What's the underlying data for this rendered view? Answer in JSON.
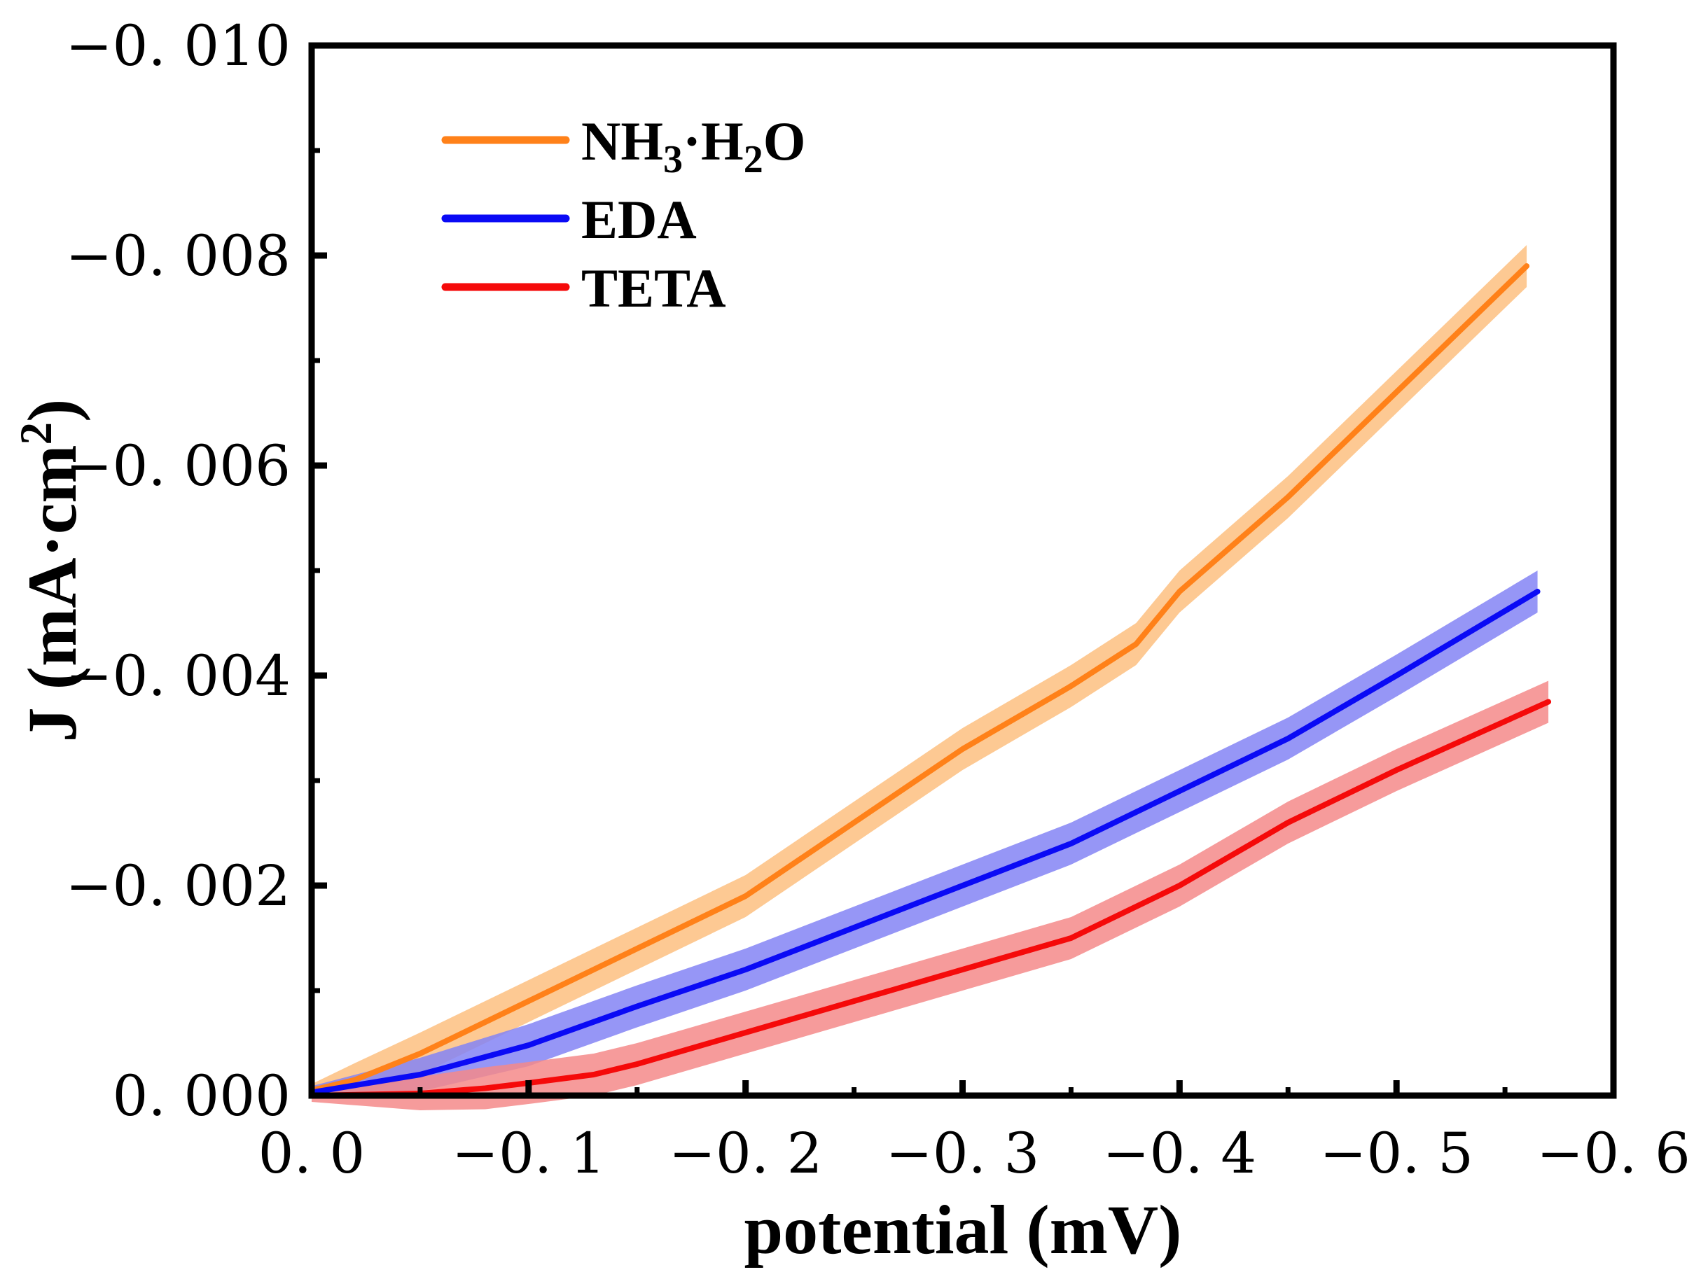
{
  "chart_data": {
    "type": "line",
    "title": "",
    "xlabel": "potential (mV)",
    "ylabel": "J (mA·cm2)",
    "ylabel_main": "J (mA·cm",
    "ylabel_sup": "2",
    "ylabel_close": ")",
    "xlim": [
      0.0,
      -0.6
    ],
    "ylim": [
      0.0,
      -0.01
    ],
    "xticks": [
      0.0,
      -0.1,
      -0.2,
      -0.3,
      -0.4,
      -0.5,
      -0.6
    ],
    "xtick_labels": [
      "0. 0",
      "−0. 1",
      "−0. 2",
      "−0. 3",
      "−0. 4",
      "−0. 5",
      "−0. 6"
    ],
    "yticks": [
      0.0,
      -0.002,
      -0.004,
      -0.006,
      -0.008,
      -0.01
    ],
    "ytick_labels": [
      "0. 000",
      "−0. 002",
      "−0. 004",
      "−0. 006",
      "−0. 008",
      "−0. 010"
    ],
    "grid": false,
    "legend_position": "top-left",
    "band_halfwidth": 0.0002,
    "series": [
      {
        "name": "NH3·H2O",
        "label_parts": [
          "NH",
          "3",
          "·H",
          "2",
          "O"
        ],
        "color": "#ff8119",
        "band_color": "#fdbf80",
        "x": [
          0,
          -0.02,
          -0.05,
          -0.1,
          -0.15,
          -0.2,
          -0.25,
          -0.3,
          -0.35,
          -0.38,
          -0.4,
          -0.45,
          -0.5,
          -0.56
        ],
        "y": [
          -5e-05,
          -0.00015,
          -0.0004,
          -0.0009,
          -0.0014,
          -0.0019,
          -0.0026,
          -0.0033,
          -0.0039,
          -0.0043,
          -0.0048,
          -0.0057,
          -0.0067,
          -0.0079
        ]
      },
      {
        "name": "EDA",
        "label_parts": [
          "EDA"
        ],
        "color": "#0a0af5",
        "band_color": "#8484f5",
        "x": [
          0,
          -0.05,
          -0.1,
          -0.15,
          -0.2,
          -0.25,
          -0.3,
          -0.35,
          -0.4,
          -0.45,
          -0.5,
          -0.565
        ],
        "y": [
          -3e-05,
          -0.0002,
          -0.00048,
          -0.00085,
          -0.0012,
          -0.0016,
          -0.002,
          -0.0024,
          -0.0029,
          -0.0034,
          -0.004,
          -0.0048
        ]
      },
      {
        "name": "TETA",
        "label_parts": [
          "TETA"
        ],
        "color": "#f50a0a",
        "band_color": "#f58a8a",
        "x": [
          0,
          -0.05,
          -0.08,
          -0.1,
          -0.13,
          -0.15,
          -0.2,
          -0.25,
          -0.3,
          -0.35,
          -0.4,
          -0.45,
          -0.5,
          -0.57
        ],
        "y": [
          0,
          -2e-05,
          -7e-05,
          -0.00012,
          -0.0002,
          -0.0003,
          -0.0006,
          -0.0009,
          -0.0012,
          -0.0015,
          -0.002,
          -0.0026,
          -0.0031,
          -0.00375
        ]
      }
    ]
  }
}
